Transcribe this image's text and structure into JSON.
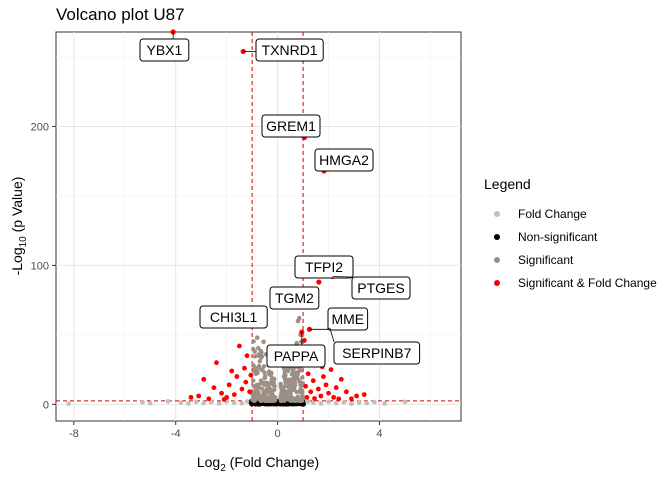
{
  "chart_data": {
    "type": "scatter",
    "title": "Volcano plot U87",
    "xlabel_main": "Log",
    "xlabel_sub": "2",
    "xlabel_rest": " (Fold Change)",
    "ylabel_main": "-Log",
    "ylabel_sub": "10",
    "ylabel_rest": " (p Value)",
    "xlim": [
      -8.7,
      7.2
    ],
    "ylim": [
      -12,
      268
    ],
    "x_ticks": [
      -8,
      -4,
      0,
      4
    ],
    "y_ticks": [
      0,
      100,
      200
    ],
    "fc_cutoff": 1,
    "p_cutoff": 2.5,
    "grid": true,
    "legend_position": "right",
    "legend_title": "Legend",
    "series": [
      {
        "name": "Fold Change",
        "color": "#bfbfbf"
      },
      {
        "name": "Non-significant",
        "color": "#000000"
      },
      {
        "name": "Significant",
        "color": "#9c8f85"
      },
      {
        "name": "Significant & Fold Change",
        "color": "#ff0000"
      }
    ],
    "labeled_genes": [
      {
        "name": "YBX1",
        "x": -4.1,
        "y": 268
      },
      {
        "name": "TXNRD1",
        "x": -1.35,
        "y": 254
      },
      {
        "name": "GREM1",
        "x": 1.05,
        "y": 192
      },
      {
        "name": "HMGA2",
        "x": 1.82,
        "y": 168
      },
      {
        "name": "TFPI2",
        "x": 1.62,
        "y": 88
      },
      {
        "name": "PTGES",
        "x": 2.15,
        "y": 92
      },
      {
        "name": "TGM2",
        "x": 1.15,
        "y": 70
      },
      {
        "name": "MME",
        "x": 1.25,
        "y": 54
      },
      {
        "name": "CHI3L1",
        "x": -1.2,
        "y": 57
      },
      {
        "name": "SERPINB7",
        "x": 2.05,
        "y": 55
      },
      {
        "name": "PAPPA",
        "x": 0.95,
        "y": 52
      }
    ],
    "sig_fc_points": [
      [
        -2.9,
        18
      ],
      [
        -2.5,
        12
      ],
      [
        -2.2,
        8
      ],
      [
        -1.9,
        14
      ],
      [
        -1.6,
        20
      ],
      [
        -1.4,
        11
      ],
      [
        -1.3,
        26
      ],
      [
        -1.2,
        35
      ],
      [
        -1.1,
        9
      ],
      [
        -1.7,
        7
      ],
      [
        -2.0,
        5
      ],
      [
        -2.7,
        4
      ],
      [
        -3.1,
        6
      ],
      [
        -3.4,
        5
      ],
      [
        -1.5,
        42
      ],
      [
        -1.8,
        24
      ],
      [
        -2.4,
        30
      ],
      [
        -1.25,
        16
      ],
      [
        -1.05,
        21
      ],
      [
        -2.1,
        3.5
      ],
      [
        1.1,
        13
      ],
      [
        1.2,
        22
      ],
      [
        1.3,
        9
      ],
      [
        1.4,
        17
      ],
      [
        1.5,
        30
      ],
      [
        1.6,
        11
      ],
      [
        1.7,
        6
      ],
      [
        1.8,
        20
      ],
      [
        1.9,
        14
      ],
      [
        2.0,
        8
      ],
      [
        2.1,
        25
      ],
      [
        2.2,
        5
      ],
      [
        2.3,
        12
      ],
      [
        2.5,
        18
      ],
      [
        2.7,
        9
      ],
      [
        2.9,
        4
      ],
      [
        3.1,
        6
      ],
      [
        3.4,
        7
      ],
      [
        1.35,
        40
      ],
      [
        1.55,
        33
      ],
      [
        1.05,
        46
      ],
      [
        1.75,
        27
      ],
      [
        2.4,
        4
      ],
      [
        1.15,
        5
      ],
      [
        1.45,
        4.2
      ]
    ],
    "sig_points": [
      [
        -1.0,
        58
      ],
      [
        -0.9,
        38
      ],
      [
        -0.8,
        48
      ],
      [
        -0.7,
        31
      ],
      [
        -0.6,
        25
      ],
      [
        -0.55,
        45
      ],
      [
        -0.5,
        19
      ],
      [
        -0.45,
        36
      ],
      [
        -0.4,
        14
      ],
      [
        -0.35,
        28
      ],
      [
        -0.3,
        10
      ],
      [
        -0.25,
        22
      ],
      [
        -0.2,
        7
      ],
      [
        -0.15,
        15
      ],
      [
        -0.1,
        5
      ],
      [
        0.15,
        6
      ],
      [
        0.2,
        12
      ],
      [
        0.3,
        18
      ],
      [
        0.35,
        9
      ],
      [
        0.4,
        24
      ],
      [
        0.45,
        32
      ],
      [
        0.5,
        16
      ],
      [
        0.55,
        40
      ],
      [
        0.6,
        27
      ],
      [
        0.7,
        21
      ],
      [
        0.75,
        44
      ],
      [
        0.8,
        35
      ],
      [
        0.85,
        62
      ],
      [
        0.9,
        50
      ],
      [
        0.95,
        30
      ],
      [
        0.25,
        26
      ],
      [
        -0.65,
        17
      ],
      [
        -0.75,
        12
      ],
      [
        -0.85,
        22
      ],
      [
        -0.95,
        28
      ],
      [
        0.65,
        11
      ],
      [
        0.5,
        8
      ],
      [
        -0.55,
        9
      ],
      [
        0.9,
        14
      ],
      [
        0.8,
        60
      ]
    ],
    "fc_points": [
      [
        -8.2,
        0.4
      ],
      [
        -5.3,
        1.5
      ],
      [
        -5.0,
        0.8
      ],
      [
        -4.3,
        2.2
      ],
      [
        -3.8,
        1.2
      ],
      [
        -3.5,
        0.6
      ],
      [
        -3.2,
        1.8
      ],
      [
        -2.9,
        0.9
      ],
      [
        -2.6,
        1.4
      ],
      [
        -2.3,
        0.5
      ],
      [
        -2.0,
        2.0
      ],
      [
        -1.7,
        1.0
      ],
      [
        -1.4,
        0.7
      ],
      [
        1.4,
        1.1
      ],
      [
        1.7,
        0.6
      ],
      [
        2.0,
        1.9
      ],
      [
        2.3,
        0.8
      ],
      [
        2.6,
        1.5
      ],
      [
        2.9,
        0.4
      ],
      [
        3.2,
        1.2
      ],
      [
        3.5,
        0.9
      ],
      [
        3.8,
        1.7
      ],
      [
        4.2,
        0.5
      ],
      [
        5.0,
        1.8
      ],
      [
        -1.2,
        2.1
      ],
      [
        1.2,
        2.0
      ]
    ]
  }
}
